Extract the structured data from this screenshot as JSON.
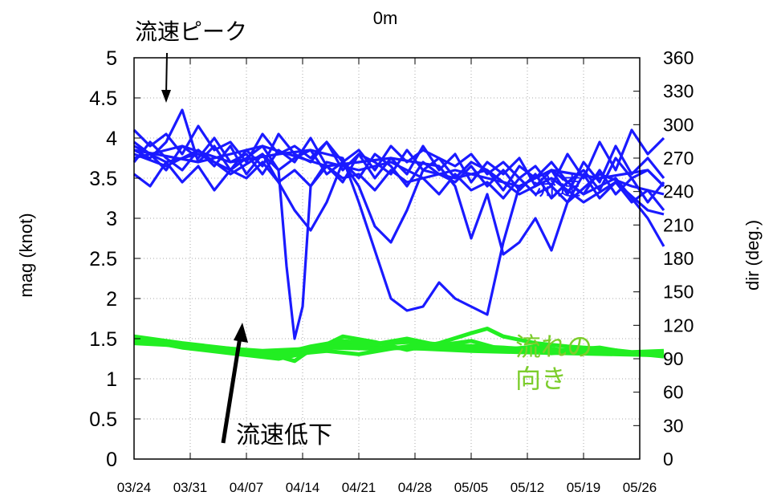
{
  "chart_data": {
    "type": "line",
    "title": "0m",
    "ylabel_left": "mag (knot)",
    "ylabel_right": "dir (deg.)",
    "xlabel": "",
    "x_tick_labels": [
      "03/24",
      "03/31",
      "04/07",
      "04/14",
      "04/21",
      "04/28",
      "05/05",
      "05/12",
      "05/19",
      "05/26"
    ],
    "y_left_ticks": [
      "0",
      "0.5",
      "1",
      "1.5",
      "2",
      "2.5",
      "3",
      "3.5",
      "4",
      "4.5",
      "5"
    ],
    "y_right_ticks": [
      "0",
      "30",
      "60",
      "90",
      "120",
      "150",
      "180",
      "210",
      "240",
      "270",
      "300",
      "330",
      "360"
    ],
    "xlim_days": [
      0,
      63
    ],
    "ylim_left": [
      0,
      5
    ],
    "ylim_right": [
      0,
      360
    ],
    "grid": true,
    "series_colors": {
      "speed": "#1a1aff",
      "direction": "#22ee22"
    },
    "speed_series": [
      {
        "x": [
          0,
          2,
          4,
          6,
          8,
          10,
          12,
          14,
          16,
          18,
          20,
          22,
          24,
          26,
          28,
          30,
          32,
          34,
          36,
          38,
          40,
          42,
          44,
          46,
          48,
          50,
          52,
          54,
          56,
          58,
          60,
          62,
          64,
          66
        ],
        "values": [
          4.1,
          3.9,
          4.05,
          3.8,
          4.15,
          3.85,
          3.95,
          3.7,
          4.05,
          3.8,
          3.9,
          3.75,
          3.95,
          3.7,
          3.85,
          3.6,
          3.9,
          3.7,
          3.85,
          3.75,
          3.65,
          3.8,
          3.55,
          3.7,
          3.5,
          3.65,
          3.4,
          3.8,
          3.5,
          3.95,
          3.6,
          4.1,
          3.8,
          4.0
        ]
      },
      {
        "x": [
          0,
          2,
          4,
          6,
          8,
          10,
          12,
          14,
          16,
          18,
          20,
          22,
          24,
          26,
          28,
          30,
          32,
          34,
          36,
          38,
          40,
          42,
          44,
          46,
          48,
          50,
          52,
          54,
          56,
          58,
          60,
          62,
          64,
          66
        ],
        "values": [
          3.85,
          3.75,
          3.95,
          4.35,
          3.7,
          3.9,
          3.6,
          3.85,
          3.65,
          4.05,
          3.8,
          3.7,
          3.95,
          3.6,
          3.8,
          3.5,
          3.75,
          3.55,
          3.9,
          3.6,
          3.8,
          3.45,
          3.7,
          3.55,
          3.75,
          3.4,
          3.6,
          3.3,
          3.7,
          3.45,
          3.9,
          3.55,
          3.75,
          3.5
        ]
      },
      {
        "x": [
          0,
          2,
          4,
          6,
          8,
          10,
          12,
          14,
          16,
          18,
          20,
          22,
          24,
          26,
          28,
          30,
          32,
          34,
          36,
          38,
          40,
          42,
          44,
          46,
          48,
          50,
          52,
          54,
          56,
          58,
          60,
          62,
          64,
          66
        ],
        "values": [
          3.55,
          3.4,
          3.7,
          3.45,
          3.65,
          3.35,
          3.6,
          3.5,
          3.7,
          3.45,
          3.6,
          3.4,
          3.65,
          3.5,
          3.55,
          3.35,
          3.6,
          3.45,
          3.5,
          3.3,
          3.55,
          3.35,
          3.45,
          3.25,
          3.5,
          3.3,
          3.4,
          3.2,
          3.55,
          3.25,
          3.45,
          3.2,
          3.35,
          3.1
        ]
      },
      {
        "x": [
          0,
          2,
          4,
          6,
          8,
          10,
          12,
          14,
          16,
          18,
          20,
          22,
          24,
          26,
          28,
          30,
          32,
          34,
          36,
          38,
          40,
          42,
          44,
          46,
          48,
          50,
          52,
          54,
          56,
          58,
          60,
          62,
          64,
          66
        ],
        "values": [
          3.95,
          3.8,
          3.6,
          3.9,
          3.75,
          4.0,
          3.7,
          3.8,
          3.55,
          3.85,
          3.7,
          4.0,
          3.65,
          3.45,
          3.8,
          3.7,
          3.55,
          3.85,
          3.6,
          3.75,
          3.5,
          3.7,
          3.6,
          3.35,
          3.65,
          3.5,
          3.7,
          3.45,
          3.6,
          3.35,
          3.75,
          3.5,
          3.6,
          3.4
        ]
      },
      {
        "x": [
          0,
          2,
          4,
          6,
          8,
          10,
          12,
          14,
          16,
          18,
          20,
          22,
          24,
          26,
          28,
          30,
          32,
          34,
          36,
          38,
          40,
          42,
          44,
          46,
          48,
          50,
          52,
          54,
          56,
          58,
          60,
          62,
          64,
          66
        ],
        "values": [
          3.7,
          3.95,
          3.75,
          3.6,
          3.85,
          3.65,
          3.9,
          3.55,
          3.8,
          3.6,
          3.75,
          3.85,
          3.55,
          3.7,
          3.5,
          3.8,
          3.65,
          3.4,
          3.7,
          3.55,
          3.45,
          3.65,
          3.4,
          3.6,
          3.35,
          3.55,
          3.25,
          3.45,
          3.3,
          3.6,
          3.3,
          3.5,
          3.2,
          3.45
        ]
      },
      {
        "x": [
          0,
          4,
          8,
          12,
          16,
          18,
          19,
          20,
          21,
          22,
          24,
          28,
          32,
          36,
          40,
          44,
          48,
          52,
          56,
          60,
          64,
          66
        ],
        "values": [
          3.9,
          3.7,
          3.8,
          3.6,
          3.9,
          3.6,
          2.4,
          1.5,
          1.9,
          3.4,
          3.7,
          3.6,
          3.7,
          3.5,
          3.6,
          3.5,
          3.4,
          3.6,
          3.3,
          3.5,
          3.0,
          2.65
        ]
      },
      {
        "x": [
          0,
          4,
          8,
          12,
          16,
          20,
          22,
          24,
          26,
          28,
          30,
          32,
          34,
          36,
          40,
          44,
          48,
          52,
          56,
          60,
          64,
          66
        ],
        "values": [
          3.8,
          3.65,
          3.85,
          3.55,
          3.8,
          3.1,
          2.85,
          3.2,
          3.7,
          3.4,
          2.9,
          2.7,
          3.1,
          3.6,
          3.5,
          3.6,
          3.3,
          3.5,
          3.2,
          3.45,
          3.1,
          3.05
        ]
      },
      {
        "x": [
          0,
          6,
          12,
          18,
          22,
          26,
          28,
          30,
          32,
          34,
          36,
          38,
          40,
          42,
          44,
          46,
          48,
          52,
          58,
          64,
          66
        ],
        "values": [
          3.75,
          3.9,
          3.7,
          3.8,
          3.85,
          3.75,
          3.2,
          2.6,
          2.0,
          1.85,
          1.9,
          2.2,
          2.0,
          1.9,
          1.8,
          2.7,
          3.4,
          3.6,
          3.5,
          3.6,
          3.4
        ]
      },
      {
        "x": [
          0,
          8,
          16,
          24,
          32,
          38,
          40,
          42,
          44,
          46,
          48,
          50,
          52,
          54,
          58,
          62,
          66
        ],
        "values": [
          3.85,
          3.7,
          3.9,
          3.65,
          3.75,
          3.65,
          3.4,
          2.75,
          3.3,
          2.55,
          2.7,
          3.0,
          2.6,
          3.2,
          3.55,
          3.4,
          3.3
        ]
      }
    ],
    "direction_series": [
      {
        "x": [
          0,
          6,
          12,
          18,
          20,
          22,
          26,
          30,
          36,
          42,
          48,
          54,
          60,
          66
        ],
        "values": [
          107,
          102,
          97,
          92,
          88,
          98,
          103,
          100,
          99,
          97,
          96,
          95,
          94,
          93
        ]
      },
      {
        "x": [
          0,
          6,
          12,
          18,
          22,
          26,
          30,
          34,
          38,
          42,
          46,
          50,
          54,
          60,
          66
        ],
        "values": [
          110,
          104,
          99,
          94,
          101,
          106,
          103,
          108,
          102,
          106,
          98,
          101,
          97,
          95,
          96
        ]
      },
      {
        "x": [
          0,
          6,
          12,
          18,
          24,
          30,
          36,
          42,
          48,
          54,
          60,
          66
        ],
        "values": [
          105,
          103,
          98,
          96,
          100,
          99,
          101,
          99,
          98,
          96,
          95,
          95
        ]
      },
      {
        "x": [
          0,
          6,
          12,
          18,
          22,
          26,
          30,
          34,
          38,
          42,
          44,
          46,
          50,
          54,
          58,
          62,
          66
        ],
        "values": [
          108,
          100,
          95,
          90,
          96,
          110,
          105,
          98,
          104,
          113,
          117,
          110,
          104,
          101,
          99,
          96,
          97
        ]
      },
      {
        "x": [
          0,
          8,
          16,
          22,
          28,
          34,
          40,
          46,
          52,
          58,
          62,
          66
        ],
        "values": [
          104,
          101,
          97,
          99,
          102,
          105,
          102,
          100,
          97,
          100,
          95,
          92
        ]
      },
      {
        "x": [
          0,
          6,
          12,
          18,
          24,
          28,
          32,
          36,
          40,
          46,
          52,
          58,
          64,
          66
        ],
        "values": [
          109,
          103,
          97,
          93,
          97,
          94,
          99,
          103,
          100,
          98,
          95,
          99,
          94,
          96
        ]
      }
    ]
  },
  "annotations": {
    "peak_label": "流速ピーク",
    "drop_label": "流速低下",
    "speed_label": "流速",
    "direction_label_line1": "流れの",
    "direction_label_line2": "向き",
    "speed_label_color": "#1a1aff",
    "direction_label_color": "#7ccd2c"
  }
}
